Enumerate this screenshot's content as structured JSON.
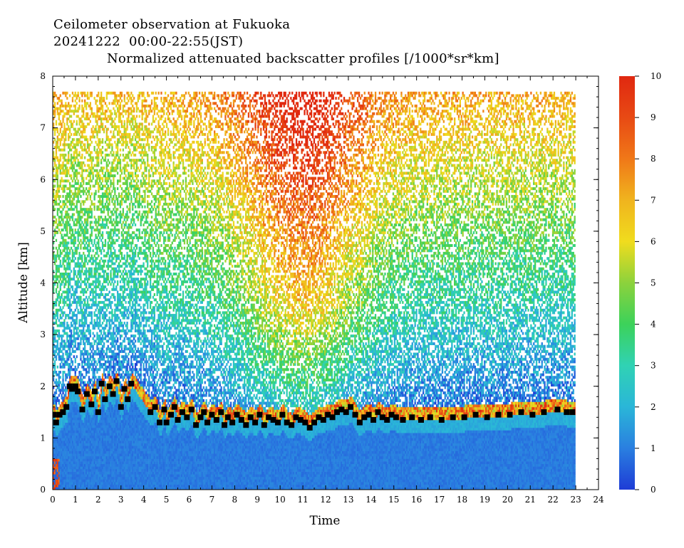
{
  "chart_data": {
    "type": "heatmap",
    "title_line1": "Ceilometer observation at Fukuoka",
    "title_line2": "20241222  00:00-22:55(JST)",
    "title_line3": "Normalized attenuated backscatter profiles [/1000*sr*km]",
    "xlabel": "Time",
    "ylabel": "Altitude [km]",
    "xlim": [
      0,
      24
    ],
    "ylim": [
      0,
      8
    ],
    "data_time_range": [
      0,
      22.92
    ],
    "data_alt_max": 7.67,
    "x_ticks": [
      0,
      1,
      2,
      3,
      4,
      5,
      6,
      7,
      8,
      9,
      10,
      11,
      12,
      13,
      14,
      15,
      16,
      17,
      18,
      19,
      20,
      21,
      22,
      23,
      24
    ],
    "y_ticks": [
      0,
      1,
      2,
      3,
      4,
      5,
      6,
      7,
      8
    ],
    "colorbar": {
      "range": [
        0,
        10
      ],
      "ticks": [
        0,
        1,
        2,
        3,
        4,
        5,
        6,
        7,
        8,
        9,
        10
      ],
      "colors": [
        "#1e3cd6",
        "#2a7fe0",
        "#2ab6d8",
        "#30d2b4",
        "#3cd25a",
        "#8cd23c",
        "#f0dc1e",
        "#f0b41e",
        "#f07818",
        "#e84a14",
        "#e02810"
      ]
    },
    "cloud_base_points": [
      [
        0.05,
        1.45
      ],
      [
        0.15,
        1.3
      ],
      [
        0.3,
        1.45
      ],
      [
        0.45,
        1.5
      ],
      [
        0.6,
        1.6
      ],
      [
        0.75,
        2.0
      ],
      [
        0.85,
        1.95
      ],
      [
        1.0,
        2.0
      ],
      [
        1.1,
        1.9
      ],
      [
        1.3,
        1.55
      ],
      [
        1.5,
        1.85
      ],
      [
        1.7,
        1.65
      ],
      [
        1.85,
        1.9
      ],
      [
        2.0,
        1.5
      ],
      [
        2.15,
        2.05
      ],
      [
        2.3,
        1.75
      ],
      [
        2.5,
        2.0
      ],
      [
        2.65,
        1.85
      ],
      [
        2.8,
        2.1
      ],
      [
        3.0,
        1.6
      ],
      [
        3.15,
        1.95
      ],
      [
        3.3,
        1.75
      ],
      [
        3.45,
        2.05
      ],
      [
        4.3,
        1.5
      ],
      [
        4.5,
        1.6
      ],
      [
        4.7,
        1.3
      ],
      [
        4.9,
        1.55
      ],
      [
        5.0,
        1.3
      ],
      [
        5.2,
        1.45
      ],
      [
        5.35,
        1.6
      ],
      [
        5.5,
        1.35
      ],
      [
        5.7,
        1.5
      ],
      [
        5.9,
        1.4
      ],
      [
        6.1,
        1.55
      ],
      [
        6.3,
        1.25
      ],
      [
        6.5,
        1.4
      ],
      [
        6.65,
        1.5
      ],
      [
        6.8,
        1.3
      ],
      [
        7.0,
        1.45
      ],
      [
        7.2,
        1.35
      ],
      [
        7.4,
        1.5
      ],
      [
        7.55,
        1.25
      ],
      [
        7.7,
        1.4
      ],
      [
        7.9,
        1.3
      ],
      [
        8.1,
        1.45
      ],
      [
        8.3,
        1.35
      ],
      [
        8.5,
        1.25
      ],
      [
        8.7,
        1.4
      ],
      [
        8.9,
        1.3
      ],
      [
        9.1,
        1.45
      ],
      [
        9.3,
        1.25
      ],
      [
        9.5,
        1.4
      ],
      [
        9.7,
        1.35
      ],
      [
        9.9,
        1.3
      ],
      [
        10.1,
        1.45
      ],
      [
        10.3,
        1.3
      ],
      [
        10.5,
        1.25
      ],
      [
        10.7,
        1.4
      ],
      [
        10.9,
        1.35
      ],
      [
        11.1,
        1.3
      ],
      [
        11.3,
        1.2
      ],
      [
        11.5,
        1.3
      ],
      [
        11.7,
        1.4
      ],
      [
        11.9,
        1.35
      ],
      [
        12.1,
        1.45
      ],
      [
        12.3,
        1.4
      ],
      [
        12.5,
        1.5
      ],
      [
        12.7,
        1.55
      ],
      [
        12.9,
        1.5
      ],
      [
        13.1,
        1.6
      ],
      [
        13.3,
        1.45
      ],
      [
        13.5,
        1.3
      ],
      [
        13.7,
        1.4
      ],
      [
        13.9,
        1.45
      ],
      [
        14.1,
        1.35
      ],
      [
        14.3,
        1.5
      ],
      [
        14.5,
        1.4
      ],
      [
        14.7,
        1.35
      ],
      [
        14.9,
        1.45
      ],
      [
        15.1,
        1.4
      ],
      [
        15.4,
        1.35
      ],
      [
        15.8,
        1.4
      ],
      [
        16.2,
        1.35
      ],
      [
        16.6,
        1.4
      ],
      [
        17.1,
        1.35
      ],
      [
        17.6,
        1.4
      ],
      [
        18.1,
        1.4
      ],
      [
        18.6,
        1.45
      ],
      [
        19.1,
        1.4
      ],
      [
        19.6,
        1.45
      ],
      [
        20.1,
        1.45
      ],
      [
        20.6,
        1.5
      ],
      [
        21.1,
        1.45
      ],
      [
        21.6,
        1.5
      ],
      [
        22.2,
        1.55
      ],
      [
        22.6,
        1.5
      ],
      [
        22.85,
        1.5
      ]
    ]
  }
}
